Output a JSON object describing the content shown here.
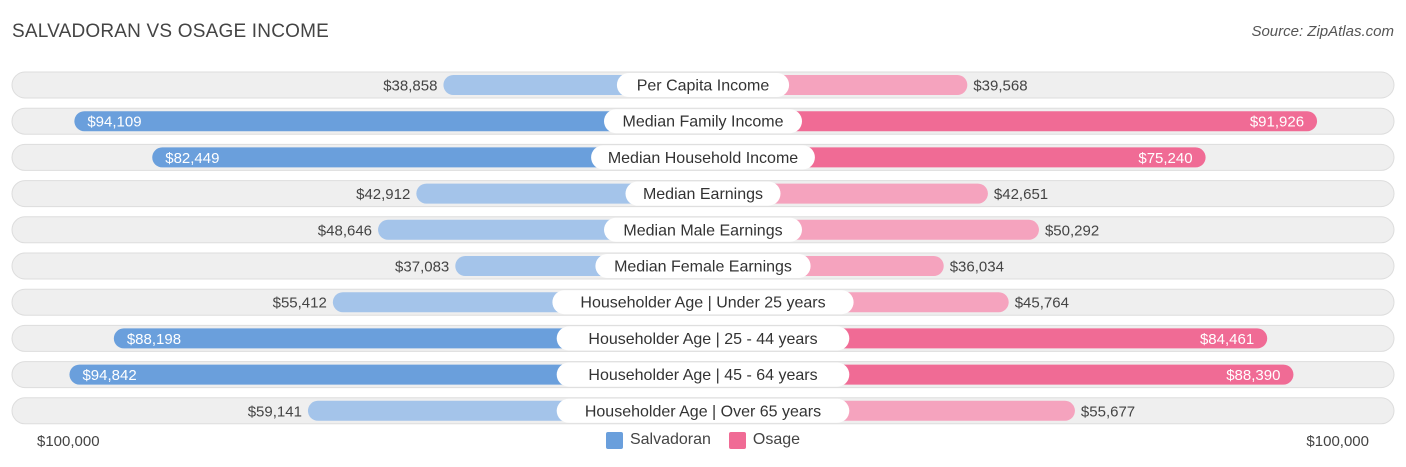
{
  "title": "SALVADORAN VS OSAGE INCOME",
  "source": "Source: ZipAtlas.com",
  "colors": {
    "left_strong": "#6a9fdc",
    "left_light": "#a4c4ea",
    "right_strong": "#f06b95",
    "right_light": "#f5a3be",
    "row_bg": "#efefef",
    "row_border": "#dddddd"
  },
  "chart_data": {
    "type": "bar",
    "orientation": "diverging-horizontal",
    "max_value": 100000,
    "axis_left_label": "$100,000",
    "axis_right_label": "$100,000",
    "series": [
      {
        "name": "Salvadoran"
      },
      {
        "name": "Osage"
      }
    ],
    "categories": [
      "Per Capita Income",
      "Median Family Income",
      "Median Household Income",
      "Median Earnings",
      "Median Male Earnings",
      "Median Female Earnings",
      "Householder Age | Under 25 years",
      "Householder Age | 25 - 44 years",
      "Householder Age | 45 - 64 years",
      "Householder Age | Over 65 years"
    ],
    "left_values": [
      38858,
      94109,
      82449,
      42912,
      48646,
      37083,
      55412,
      88198,
      94842,
      59141
    ],
    "left_labels": [
      "$38,858",
      "$94,109",
      "$82,449",
      "$42,912",
      "$48,646",
      "$37,083",
      "$55,412",
      "$88,198",
      "$94,842",
      "$59,141"
    ],
    "right_values": [
      39568,
      91926,
      75240,
      42651,
      50292,
      36034,
      45764,
      84461,
      88390,
      55677
    ],
    "right_labels": [
      "$39,568",
      "$91,926",
      "$75,240",
      "$42,651",
      "$50,292",
      "$36,034",
      "$45,764",
      "$84,461",
      "$88,390",
      "$55,677"
    ]
  }
}
